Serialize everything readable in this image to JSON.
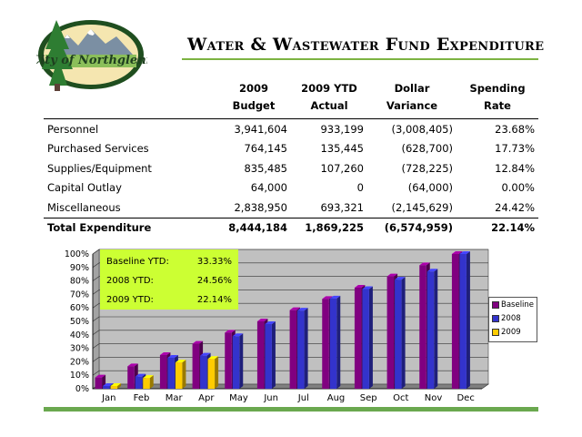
{
  "logo_text": "City of Northglenn",
  "title": "Water & Wastewater Fund Expenditure",
  "table": {
    "headers": [
      {
        "l1": "",
        "l2": ""
      },
      {
        "l1": "2009",
        "l2": "Budget"
      },
      {
        "l1": "2009 YTD",
        "l2": "Actual"
      },
      {
        "l1": "Dollar",
        "l2": "Variance"
      },
      {
        "l1": "Spending",
        "l2": "Rate"
      }
    ],
    "rows": [
      {
        "label": "Personnel",
        "budget": "3,941,604",
        "actual": "933,199",
        "variance": "(3,008,405)",
        "rate": "23.68%"
      },
      {
        "label": "Purchased Services",
        "budget": "764,145",
        "actual": "135,445",
        "variance": "(628,700)",
        "rate": "17.73%"
      },
      {
        "label": "Supplies/Equipment",
        "budget": "835,485",
        "actual": "107,260",
        "variance": "(728,225)",
        "rate": "12.84%"
      },
      {
        "label": "Capital Outlay",
        "budget": "64,000",
        "actual": "0",
        "variance": "(64,000)",
        "rate": "0.00%"
      },
      {
        "label": "Miscellaneous",
        "budget": "2,838,950",
        "actual": "693,321",
        "variance": "(2,145,629)",
        "rate": "24.42%"
      }
    ],
    "total": {
      "label": "Total Expenditure",
      "budget": "8,444,184",
      "actual": "1,869,225",
      "variance": "(6,574,959)",
      "rate": "22.14%"
    }
  },
  "info_box": [
    {
      "label": "Baseline YTD:",
      "value": "33.33%"
    },
    {
      "label": "2008 YTD:",
      "value": "24.56%"
    },
    {
      "label": "2009 YTD:",
      "value": "22.14%"
    }
  ],
  "chart_data": {
    "type": "bar",
    "style": "3d-clustered",
    "categories": [
      "Jan",
      "Feb",
      "Mar",
      "Apr",
      "May",
      "Jun",
      "Jul",
      "Aug",
      "Sep",
      "Oct",
      "Nov",
      "Dec"
    ],
    "series": [
      {
        "name": "Baseline",
        "color": "#800080",
        "values": [
          8.33,
          16.67,
          25.0,
          33.33,
          41.67,
          50.0,
          58.33,
          66.67,
          75.0,
          83.33,
          91.67,
          100.0
        ]
      },
      {
        "name": "2008",
        "color": "#3333cc",
        "values": [
          2,
          9,
          23,
          24.56,
          39,
          48,
          58,
          67,
          74,
          81,
          87,
          100
        ]
      },
      {
        "name": "2009",
        "color": "#ffcc00",
        "values": [
          2,
          8,
          19.5,
          22.14,
          null,
          null,
          null,
          null,
          null,
          null,
          null,
          null
        ]
      }
    ],
    "ylim": [
      0,
      100
    ],
    "yticks": [
      "0%",
      "10%",
      "20%",
      "30%",
      "40%",
      "50%",
      "60%",
      "70%",
      "80%",
      "90%",
      "100%"
    ],
    "legend_position": "right",
    "colors": {
      "wall": "#c0c0c0",
      "floor": "#808080"
    }
  }
}
